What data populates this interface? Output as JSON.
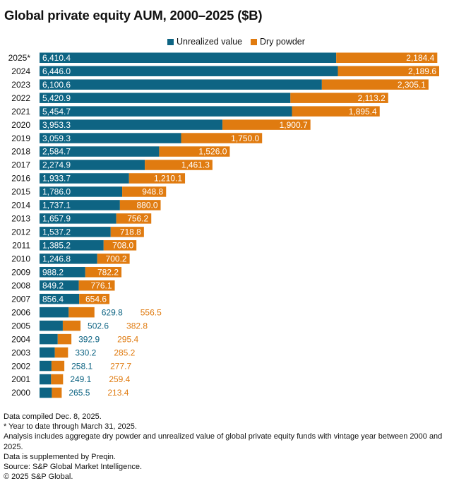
{
  "chart_data": {
    "type": "bar",
    "stacked": true,
    "orientation": "horizontal",
    "title": "Global private equity AUM, 2000–2025 ($B)",
    "categories": [
      "2025*",
      "2024",
      "2023",
      "2022",
      "2021",
      "2020",
      "2019",
      "2018",
      "2017",
      "2016",
      "2015",
      "2014",
      "2013",
      "2012",
      "2011",
      "2010",
      "2009",
      "2008",
      "2007",
      "2006",
      "2005",
      "2004",
      "2003",
      "2002",
      "2001",
      "2000"
    ],
    "series": [
      {
        "name": "Unrealized value",
        "color": "#0e6483",
        "values": [
          6410.4,
          6446.0,
          6100.6,
          5420.9,
          5454.7,
          3953.3,
          3059.3,
          2584.7,
          2274.9,
          1933.7,
          1786.0,
          1737.1,
          1657.9,
          1537.2,
          1385.2,
          1246.8,
          988.2,
          849.2,
          856.4,
          629.8,
          502.6,
          392.9,
          330.2,
          258.1,
          249.1,
          265.5
        ],
        "labels": [
          "6,410.4",
          "6,446.0",
          "6,100.6",
          "5,420.9",
          "5,454.7",
          "3,953.3",
          "3,059.3",
          "2,584.7",
          "2,274.9",
          "1,933.7",
          "1,786.0",
          "1,737.1",
          "1,657.9",
          "1,537.2",
          "1,385.2",
          "1,246.8",
          "988.2",
          "849.2",
          "856.4",
          "629.8",
          "502.6",
          "392.9",
          "330.2",
          "258.1",
          "249.1",
          "265.5"
        ]
      },
      {
        "name": "Dry powder",
        "color": "#e07b10",
        "values": [
          2184.4,
          2189.6,
          2305.1,
          2113.2,
          1895.4,
          1900.7,
          1750.0,
          1526.0,
          1461.3,
          1210.1,
          948.8,
          880.0,
          756.2,
          718.8,
          708.0,
          700.2,
          782.2,
          776.1,
          654.6,
          556.5,
          382.8,
          295.4,
          285.2,
          277.7,
          259.4,
          213.4
        ],
        "labels": [
          "2,184.4",
          "2,189.6",
          "2,305.1",
          "2,113.2",
          "1,895.4",
          "1,900.7",
          "1,750.0",
          "1,526.0",
          "1,461.3",
          "1,210.1",
          "948.8",
          "880.0",
          "756.2",
          "718.8",
          "708.0",
          "700.2",
          "782.2",
          "776.1",
          "654.6",
          "556.5",
          "382.8",
          "295.4",
          "285.2",
          "277.7",
          "259.4",
          "213.4"
        ]
      }
    ],
    "legend_position": "top-right",
    "grid": false,
    "xlabel": "",
    "ylabel": ""
  },
  "notes": [
    "Data compiled Dec. 8, 2025.",
    "* Year to date through March 31, 2025.",
    "Analysis includes aggregate dry powder and unrealized value of global private equity funds with vintage year between 2000 and 2025.",
    "Data is supplemented by Preqin.",
    "Source: S&P Global Market Intelligence.",
    "© 2025 S&P Global."
  ]
}
